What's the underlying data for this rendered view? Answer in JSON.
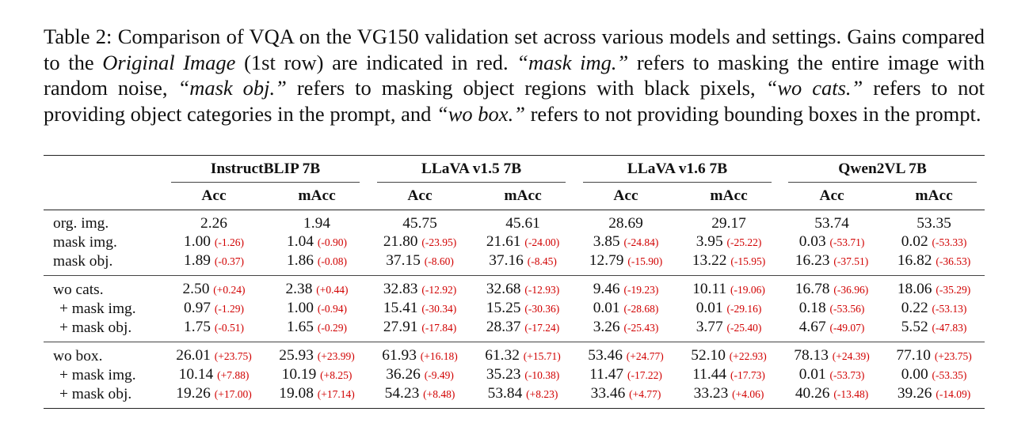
{
  "caption": {
    "p1": "Table 2: Comparison of VQA on the VG150 validation set across various models and settings. Gains compared to the ",
    "i1": "Original Image",
    "p2": " (1st row) are indicated in red. ",
    "i2": "“mask img.”",
    "p3": " refers to masking the entire image with random noise, ",
    "i3": "“mask obj.”",
    "p4": " refers to masking object regions with black pixels, ",
    "i4": "“wo cats.”",
    "p5": " refers to not providing object categories in the prompt, and ",
    "i5": "“wo box.”",
    "p6": " refers to not providing bounding boxes in the prompt."
  },
  "table": {
    "models": [
      "InstructBLIP 7B",
      "LLaVA v1.5 7B",
      "LLaVA v1.6 7B",
      "Qwen2VL 7B"
    ],
    "metrics": [
      "Acc",
      "mAcc",
      "Acc",
      "mAcc",
      "Acc",
      "mAcc",
      "Acc",
      "mAcc"
    ],
    "blocks": [
      {
        "rows": [
          {
            "label": "org. img.",
            "cells": [
              {
                "v": "2.26",
                "g": ""
              },
              {
                "v": "1.94",
                "g": ""
              },
              {
                "v": "45.75",
                "g": ""
              },
              {
                "v": "45.61",
                "g": ""
              },
              {
                "v": "28.69",
                "g": ""
              },
              {
                "v": "29.17",
                "g": ""
              },
              {
                "v": "53.74",
                "g": ""
              },
              {
                "v": "53.35",
                "g": ""
              }
            ]
          },
          {
            "label": "mask img.",
            "cells": [
              {
                "v": "1.00",
                "g": "(-1.26)"
              },
              {
                "v": "1.04",
                "g": "(-0.90)"
              },
              {
                "v": "21.80",
                "g": "(-23.95)"
              },
              {
                "v": "21.61",
                "g": "(-24.00)"
              },
              {
                "v": "3.85",
                "g": "(-24.84)"
              },
              {
                "v": "3.95",
                "g": "(-25.22)"
              },
              {
                "v": "0.03",
                "g": "(-53.71)"
              },
              {
                "v": "0.02",
                "g": "(-53.33)"
              }
            ]
          },
          {
            "label": "mask obj.",
            "cells": [
              {
                "v": "1.89",
                "g": "(-0.37)"
              },
              {
                "v": "1.86",
                "g": "(-0.08)"
              },
              {
                "v": "37.15",
                "g": "(-8.60)"
              },
              {
                "v": "37.16",
                "g": "(-8.45)"
              },
              {
                "v": "12.79",
                "g": "(-15.90)"
              },
              {
                "v": "13.22",
                "g": "(-15.95)"
              },
              {
                "v": "16.23",
                "g": "(-37.51)"
              },
              {
                "v": "16.82",
                "g": "(-36.53)"
              }
            ]
          }
        ]
      },
      {
        "rows": [
          {
            "label": "wo cats.",
            "cells": [
              {
                "v": "2.50",
                "g": "(+0.24)"
              },
              {
                "v": "2.38",
                "g": "(+0.44)"
              },
              {
                "v": "32.83",
                "g": "(-12.92)"
              },
              {
                "v": "32.68",
                "g": "(-12.93)"
              },
              {
                "v": "9.46",
                "g": "(-19.23)"
              },
              {
                "v": "10.11",
                "g": "(-19.06)"
              },
              {
                "v": "16.78",
                "g": "(-36.96)"
              },
              {
                "v": "18.06",
                "g": "(-35.29)"
              }
            ]
          },
          {
            "label": "+ mask img.",
            "cells": [
              {
                "v": "0.97",
                "g": "(-1.29)"
              },
              {
                "v": "1.00",
                "g": "(-0.94)"
              },
              {
                "v": "15.41",
                "g": "(-30.34)"
              },
              {
                "v": "15.25",
                "g": "(-30.36)"
              },
              {
                "v": "0.01",
                "g": "(-28.68)"
              },
              {
                "v": "0.01",
                "g": "(-29.16)"
              },
              {
                "v": "0.18",
                "g": "(-53.56)"
              },
              {
                "v": "0.22",
                "g": "(-53.13)"
              }
            ]
          },
          {
            "label": "+ mask obj.",
            "cells": [
              {
                "v": "1.75",
                "g": "(-0.51)"
              },
              {
                "v": "1.65",
                "g": "(-0.29)"
              },
              {
                "v": "27.91",
                "g": "(-17.84)"
              },
              {
                "v": "28.37",
                "g": "(-17.24)"
              },
              {
                "v": "3.26",
                "g": "(-25.43)"
              },
              {
                "v": "3.77",
                "g": "(-25.40)"
              },
              {
                "v": "4.67",
                "g": "(-49.07)"
              },
              {
                "v": "5.52",
                "g": "(-47.83)"
              }
            ]
          }
        ]
      },
      {
        "rows": [
          {
            "label": "wo box.",
            "cells": [
              {
                "v": "26.01",
                "g": "(+23.75)"
              },
              {
                "v": "25.93",
                "g": "(+23.99)"
              },
              {
                "v": "61.93",
                "g": "(+16.18)"
              },
              {
                "v": "61.32",
                "g": "(+15.71)"
              },
              {
                "v": "53.46",
                "g": "(+24.77)"
              },
              {
                "v": "52.10",
                "g": "(+22.93)"
              },
              {
                "v": "78.13",
                "g": "(+24.39)"
              },
              {
                "v": "77.10",
                "g": "(+23.75)"
              }
            ]
          },
          {
            "label": "+ mask img.",
            "cells": [
              {
                "v": "10.14",
                "g": "(+7.88)"
              },
              {
                "v": "10.19",
                "g": "(+8.25)"
              },
              {
                "v": "36.26",
                "g": "(-9.49)"
              },
              {
                "v": "35.23",
                "g": "(-10.38)"
              },
              {
                "v": "11.47",
                "g": "(-17.22)"
              },
              {
                "v": "11.44",
                "g": "(-17.73)"
              },
              {
                "v": "0.01",
                "g": "(-53.73)"
              },
              {
                "v": "0.00",
                "g": "(-53.35)"
              }
            ]
          },
          {
            "label": "+ mask obj.",
            "cells": [
              {
                "v": "19.26",
                "g": "(+17.00)"
              },
              {
                "v": "19.08",
                "g": "(+17.14)"
              },
              {
                "v": "54.23",
                "g": "(+8.48)"
              },
              {
                "v": "53.84",
                "g": "(+8.23)"
              },
              {
                "v": "33.46",
                "g": "(+4.77)"
              },
              {
                "v": "33.23",
                "g": "(+4.06)"
              },
              {
                "v": "40.26",
                "g": "(-13.48)"
              },
              {
                "v": "39.26",
                "g": "(-14.09)"
              }
            ]
          }
        ]
      }
    ]
  },
  "colors": {
    "gain": "#d10000",
    "text": "#111111",
    "rule": "#222222"
  }
}
